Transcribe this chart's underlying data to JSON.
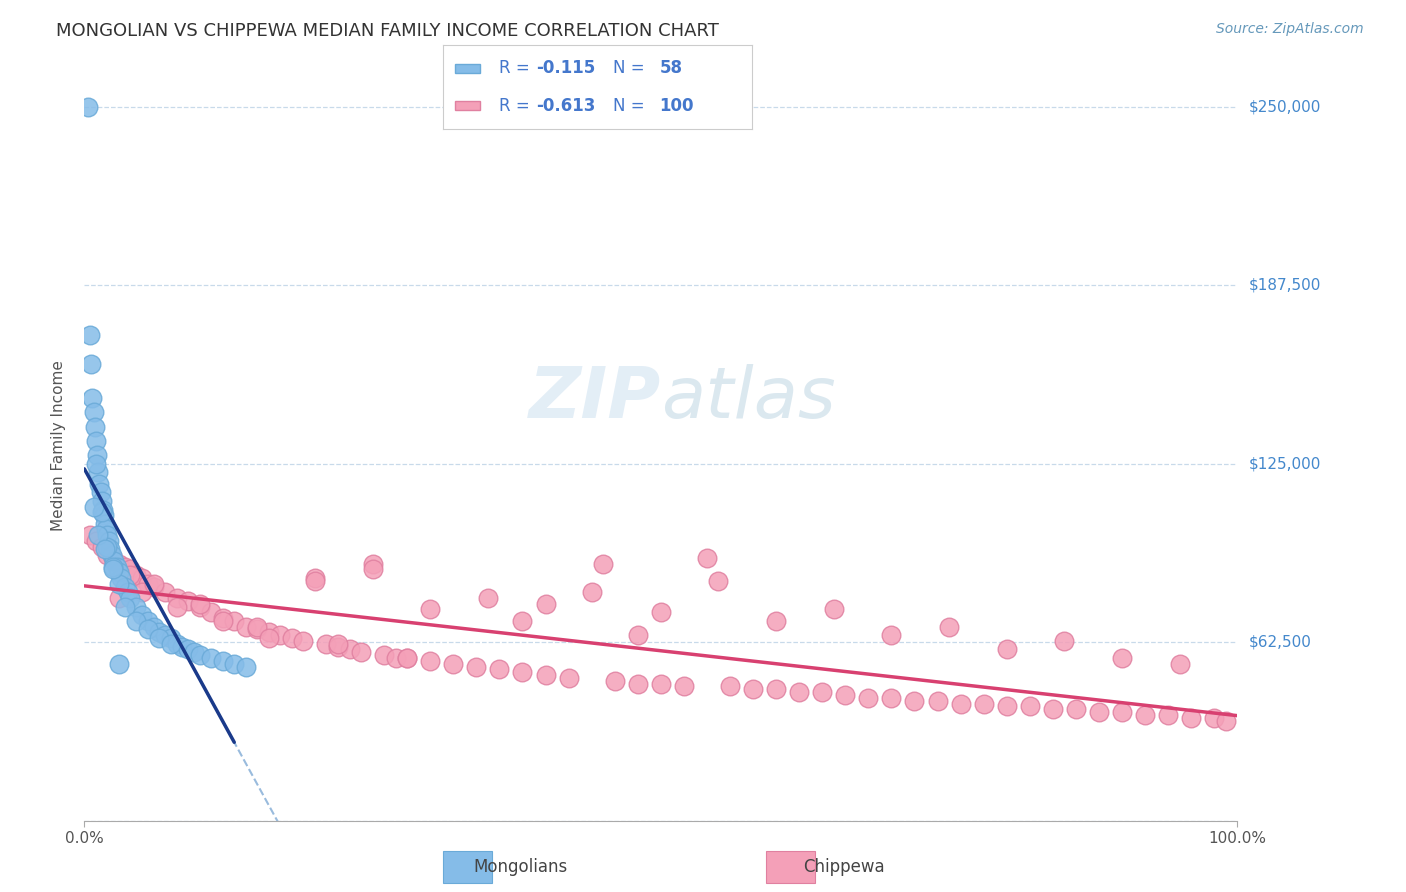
{
  "title": "MONGOLIAN VS CHIPPEWA MEDIAN FAMILY INCOME CORRELATION CHART",
  "source": "Source: ZipAtlas.com",
  "ylabel": "Median Family Income",
  "xlim": [
    0.0,
    100.0
  ],
  "ylim": [
    0,
    262500
  ],
  "yticks": [
    0,
    62500,
    125000,
    187500,
    250000
  ],
  "ytick_labels": [
    "",
    "$62,500",
    "$125,000",
    "$187,500",
    "$250,000"
  ],
  "xtick_labels": [
    "0.0%",
    "100.0%"
  ],
  "legend_r1": "-0.115",
  "legend_n1": "58",
  "legend_r2": "-0.613",
  "legend_n2": "100",
  "mongolian_color": "#85bce8",
  "mongolian_edge": "#6aaad8",
  "chippewa_color": "#f4a0b8",
  "chippewa_edge": "#e080a0",
  "mongolian_line_color": "#1a3a8a",
  "chippewa_line_color": "#d84070",
  "dashed_line_color": "#99bbdd",
  "watermark_color": "#d5e8f5",
  "background_color": "#ffffff",
  "grid_color": "#c8daea",
  "title_color": "#333333",
  "source_color": "#6699bb",
  "right_label_color": "#4488cc",
  "legend_text_color": "#4477cc",
  "mongolian_x": [
    0.3,
    0.5,
    0.6,
    0.7,
    0.8,
    0.9,
    1.0,
    1.1,
    1.2,
    1.3,
    1.4,
    1.5,
    1.6,
    1.7,
    1.8,
    1.9,
    2.0,
    2.1,
    2.2,
    2.4,
    2.6,
    2.8,
    3.0,
    3.2,
    3.5,
    3.8,
    4.0,
    4.5,
    5.0,
    5.5,
    6.0,
    6.5,
    7.0,
    7.5,
    8.0,
    8.5,
    9.0,
    9.5,
    10.0,
    11.0,
    12.0,
    13.0,
    14.0,
    1.0,
    1.5,
    2.0,
    2.5,
    3.0,
    0.8,
    1.2,
    1.8,
    2.5,
    3.5,
    4.5,
    5.5,
    6.5,
    7.5,
    3.0
  ],
  "mongolian_y": [
    250000,
    170000,
    160000,
    148000,
    143000,
    138000,
    133000,
    128000,
    122000,
    118000,
    115000,
    112000,
    109000,
    107000,
    104000,
    102000,
    100000,
    98000,
    95000,
    93000,
    91000,
    89000,
    87000,
    85000,
    82000,
    80000,
    78000,
    75000,
    72000,
    70000,
    68000,
    66000,
    65000,
    64000,
    62000,
    61000,
    60000,
    59000,
    58000,
    57000,
    56000,
    55000,
    54000,
    125000,
    108000,
    96000,
    89000,
    83000,
    110000,
    100000,
    95000,
    88000,
    75000,
    70000,
    67000,
    64000,
    62000,
    55000
  ],
  "chippewa_x": [
    0.5,
    1.0,
    1.5,
    2.0,
    2.5,
    3.0,
    3.5,
    4.0,
    4.5,
    5.0,
    5.5,
    6.0,
    7.0,
    8.0,
    9.0,
    10.0,
    11.0,
    12.0,
    13.0,
    14.0,
    15.0,
    16.0,
    17.0,
    18.0,
    19.0,
    20.0,
    21.0,
    22.0,
    23.0,
    24.0,
    25.0,
    26.0,
    27.0,
    28.0,
    30.0,
    32.0,
    34.0,
    36.0,
    38.0,
    40.0,
    42.0,
    44.0,
    46.0,
    48.0,
    50.0,
    52.0,
    54.0,
    56.0,
    58.0,
    60.0,
    62.0,
    64.0,
    66.0,
    68.0,
    70.0,
    72.0,
    74.0,
    76.0,
    78.0,
    80.0,
    82.0,
    84.0,
    86.0,
    88.0,
    90.0,
    92.0,
    94.0,
    96.0,
    98.0,
    99.0,
    3.0,
    5.0,
    8.0,
    12.0,
    15.0,
    20.0,
    25.0,
    30.0,
    35.0,
    40.0,
    45.0,
    50.0,
    55.0,
    60.0,
    65.0,
    70.0,
    75.0,
    80.0,
    85.0,
    90.0,
    95.0,
    2.0,
    4.0,
    6.0,
    10.0,
    16.0,
    22.0,
    28.0,
    38.0,
    48.0
  ],
  "chippewa_y": [
    100000,
    98000,
    96000,
    93000,
    92000,
    90000,
    89000,
    88000,
    86000,
    85000,
    83000,
    82000,
    80000,
    78000,
    77000,
    75000,
    73000,
    71000,
    70000,
    68000,
    67000,
    66000,
    65000,
    64000,
    63000,
    85000,
    62000,
    61000,
    60000,
    59000,
    90000,
    58000,
    57000,
    57000,
    56000,
    55000,
    54000,
    53000,
    52000,
    51000,
    50000,
    80000,
    49000,
    48000,
    48000,
    47000,
    92000,
    47000,
    46000,
    46000,
    45000,
    45000,
    44000,
    43000,
    43000,
    42000,
    42000,
    41000,
    41000,
    40000,
    40000,
    39000,
    39000,
    38000,
    38000,
    37000,
    37000,
    36000,
    36000,
    35000,
    78000,
    80000,
    75000,
    70000,
    68000,
    84000,
    88000,
    74000,
    78000,
    76000,
    90000,
    73000,
    84000,
    70000,
    74000,
    65000,
    68000,
    60000,
    63000,
    57000,
    55000,
    96000,
    86000,
    83000,
    76000,
    64000,
    62000,
    57000,
    70000,
    65000
  ]
}
